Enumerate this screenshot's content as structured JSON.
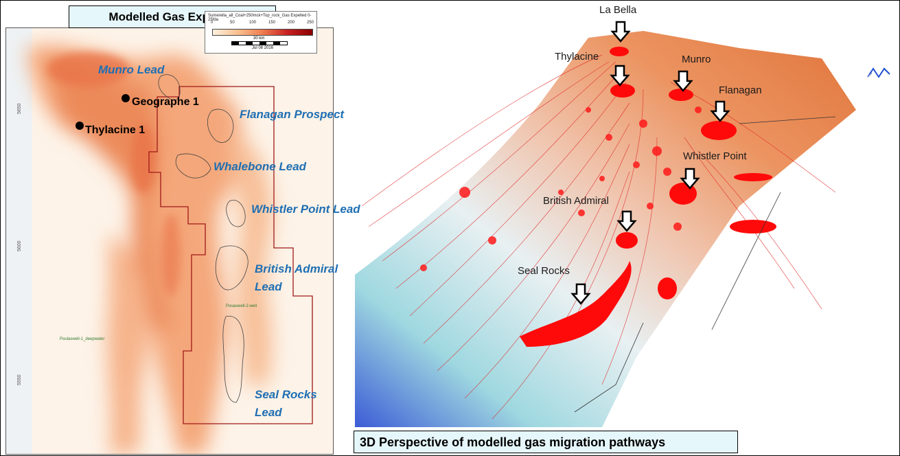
{
  "left": {
    "title": "Modelled Gas Expelled",
    "legend": {
      "caption": "Sumerella_all_Coal+250mck+Top_rock_Gas Expelled 0-25fda",
      "ticks": [
        "0",
        "50",
        "100",
        "150",
        "200",
        "250"
      ],
      "scale_label": "30 km",
      "date": "Jul 08 2016"
    },
    "wells": [
      "Geographe 1",
      "Thylacine 1"
    ],
    "leads": [
      "Munro Lead",
      "Flanagan Prospect",
      "Whalebone Lead",
      "Whistler Point Lead",
      "British Admiral",
      "Lead",
      "Seal Rocks",
      "Lead"
    ],
    "small_wells": [
      "Pouaswell-2-well",
      "Poulaswell-1_deepwater"
    ],
    "axis_ticks": [
      "5650",
      "5600",
      "5550"
    ]
  },
  "right": {
    "title": "3D Perspective of modelled gas migration pathways",
    "labels": [
      "La Bella",
      "Thylacine",
      "Munro",
      "Flanagan",
      "Whistler Point",
      "British Admiral",
      "Seal Rocks"
    ]
  }
}
